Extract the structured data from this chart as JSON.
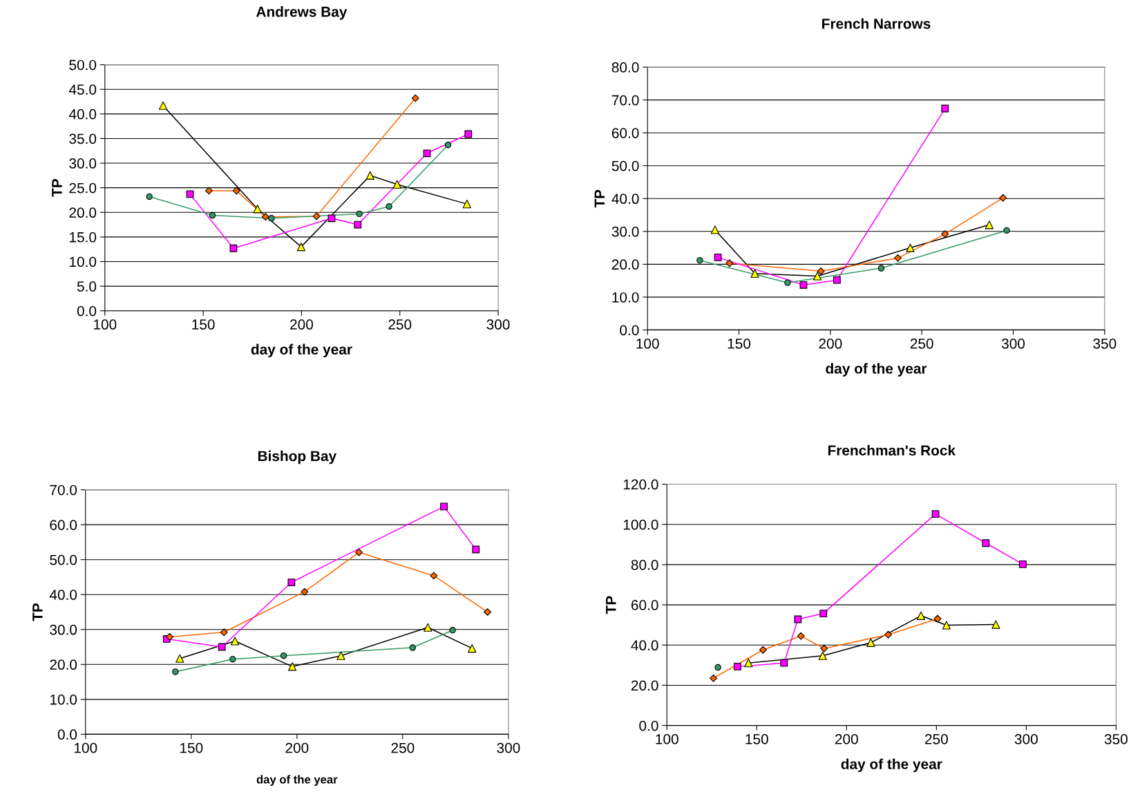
{
  "chart_data": [
    {
      "type": "line",
      "title": "Andrews Bay",
      "xlabel": "day of the year",
      "ylabel": "TP",
      "xlim": [
        100,
        300
      ],
      "xticks": [
        100,
        150,
        200,
        250,
        300
      ],
      "ylim": [
        0,
        50
      ],
      "yticks": [
        {
          "value": 0,
          "label": "0.0"
        },
        {
          "value": 5,
          "label": "5.0"
        },
        {
          "value": 10,
          "label": "10.0"
        },
        {
          "value": 15,
          "label": "15.0"
        },
        {
          "value": 20,
          "label": "20.0"
        },
        {
          "value": 25,
          "label": "25.0"
        },
        {
          "value": 30,
          "label": "30.0"
        },
        {
          "value": 35,
          "label": "35.0"
        },
        {
          "value": 40,
          "label": "40.0"
        },
        {
          "value": 45,
          "label": "45.0"
        },
        {
          "value": 50,
          "label": "50.0"
        }
      ],
      "grid": "y",
      "legend": false,
      "series": [
        {
          "color": "#000000",
          "colors": [
            "#ffff00",
            "#ffff00",
            "#ffff00",
            "#ffff00",
            "#ffff00",
            "#ffff00"
          ],
          "marker": "triangle",
          "x": [
            129.6,
            177.6,
            199.8,
            234.9,
            248.6,
            284.1
          ],
          "values": [
            41.7,
            20.7,
            13.0,
            27.5,
            25.7,
            21.7
          ]
        },
        {
          "color": "#ff6600",
          "marker": "diamond",
          "x": [
            152.9,
            166.9,
            181.7,
            207.6,
            257.9
          ],
          "values": [
            24.4,
            24.4,
            19.1,
            19.2,
            43.2
          ]
        },
        {
          "color": "#ff00ff",
          "marker": "square",
          "x": [
            143.3,
            165.4,
            215.3,
            228.6,
            263.8,
            284.8
          ],
          "values": [
            23.7,
            12.7,
            18.8,
            17.5,
            32.0,
            35.9
          ]
        },
        {
          "color": "#339966",
          "marker": "circle",
          "x": [
            122.6,
            154.7,
            184.7,
            229.4,
            244.5,
            274.5
          ],
          "values": [
            23.2,
            19.4,
            18.8,
            19.7,
            21.2,
            33.7
          ]
        }
      ]
    },
    {
      "type": "line",
      "title": "French Narrows",
      "xlabel": "day of the year",
      "ylabel": "TP",
      "xlim": [
        100,
        350
      ],
      "xticks": [
        100,
        150,
        200,
        250,
        300,
        350
      ],
      "ylim": [
        0,
        80
      ],
      "yticks": [
        {
          "value": 0,
          "label": "0.0"
        },
        {
          "value": 10,
          "label": "10.0"
        },
        {
          "value": 20,
          "label": "20.0"
        },
        {
          "value": 30,
          "label": "30.0"
        },
        {
          "value": 40,
          "label": "40.0"
        },
        {
          "value": 50,
          "label": "50.0"
        },
        {
          "value": 60,
          "label": "60.0"
        },
        {
          "value": 70,
          "label": "70.0"
        },
        {
          "value": 80,
          "label": "80.0"
        }
      ],
      "grid": "y",
      "legend": false,
      "series": [
        {
          "color": "#000000",
          "colors": [
            "#ffff00",
            "#ffff00",
            "#ffff00",
            "#ffff00",
            "#ffff00"
          ],
          "marker": "triangle",
          "x": [
            136.9,
            158.7,
            192.9,
            243.7,
            286.9
          ],
          "values": [
            30.5,
            17.2,
            16.4,
            25.0,
            32.0
          ]
        },
        {
          "color": "#ff6600",
          "marker": "diamond",
          "x": [
            144.8,
            194.8,
            236.9,
            262.7,
            294.4
          ],
          "values": [
            20.3,
            17.9,
            21.9,
            29.2,
            40.2
          ]
        },
        {
          "color": "#ff00ff",
          "marker": "square",
          "x": [
            138.5,
            185.3,
            203.6,
            262.7
          ],
          "values": [
            22.1,
            13.7,
            15.2,
            67.4
          ]
        },
        {
          "color": "#339966",
          "marker": "circle",
          "x": [
            128.6,
            176.6,
            227.8,
            296.4
          ],
          "values": [
            21.2,
            14.4,
            18.8,
            30.3
          ]
        }
      ]
    },
    {
      "type": "line",
      "title": "Bishop Bay",
      "xlabel": "day of the year",
      "ylabel": "TP",
      "xlim": [
        100,
        300
      ],
      "xticks": [
        100,
        150,
        200,
        250,
        300
      ],
      "ylim": [
        0,
        70
      ],
      "yticks": [
        {
          "value": 0,
          "label": "0.0"
        },
        {
          "value": 10,
          "label": "10.0"
        },
        {
          "value": 20,
          "label": "20.0"
        },
        {
          "value": 30,
          "label": "30.0"
        },
        {
          "value": 40,
          "label": "40.0"
        },
        {
          "value": 50,
          "label": "50.0"
        },
        {
          "value": 60,
          "label": "60.0"
        },
        {
          "value": 70,
          "label": "70.0"
        }
      ],
      "grid": "y",
      "legend": false,
      "series": [
        {
          "color": "#000000",
          "colors": [
            "#ffff00",
            "#ffff00",
            "#ffff00",
            "#ffff00",
            "#ffff00",
            "#ffff00"
          ],
          "marker": "triangle",
          "x": [
            144.6,
            170.7,
            197.8,
            220.8,
            261.9,
            282.8
          ],
          "values": [
            21.7,
            26.7,
            19.4,
            22.5,
            30.6,
            24.6
          ]
        },
        {
          "color": "#ff6600",
          "marker": "diamond",
          "x": [
            139.8,
            165.5,
            203.6,
            229.3,
            264.7,
            290.1
          ],
          "values": [
            27.9,
            29.2,
            40.8,
            52.1,
            45.4,
            35.0
          ]
        },
        {
          "color": "#ff00ff",
          "marker": "square",
          "x": [
            138.4,
            164.5,
            197.4,
            269.5,
            284.6
          ],
          "values": [
            27.3,
            25.0,
            43.5,
            65.2,
            52.9
          ]
        },
        {
          "color": "#339966",
          "marker": "circle",
          "x": [
            142.5,
            169.6,
            193.7,
            254.7,
            273.6
          ],
          "values": [
            17.9,
            21.5,
            22.5,
            24.8,
            29.8
          ]
        }
      ]
    },
    {
      "type": "line",
      "title": "Frenchman's Rock",
      "xlabel": "day of the year",
      "ylabel": "TP",
      "xlim": [
        100,
        350
      ],
      "xticks": [
        100,
        150,
        200,
        250,
        300,
        350
      ],
      "ylim": [
        0,
        120
      ],
      "yticks": [
        {
          "value": 0,
          "label": "0.0"
        },
        {
          "value": 20,
          "label": "20.0"
        },
        {
          "value": 40,
          "label": "40.0"
        },
        {
          "value": 60,
          "label": "60.0"
        },
        {
          "value": 80,
          "label": "80.0"
        },
        {
          "value": 100,
          "label": "100.0"
        },
        {
          "value": 120,
          "label": "120.0"
        }
      ],
      "grid": "y",
      "legend": false,
      "series": [
        {
          "color": "#000000",
          "colors": [
            "#ffff00",
            "#ffff00",
            "#ffff00",
            "#ffff00",
            "#ffff00",
            "#ffff00"
          ],
          "marker": "triangle",
          "x": [
            145.4,
            186.7,
            213.5,
            241.4,
            255.6,
            283.1
          ],
          "values": [
            31.1,
            34.7,
            41.2,
            54.6,
            49.9,
            50.2
          ]
        },
        {
          "color": "#ff6600",
          "marker": "diamond",
          "x": [
            125.9,
            153.5,
            174.6,
            187.5,
            223.2,
            250.7
          ],
          "values": [
            23.5,
            37.6,
            44.5,
            38.3,
            45.2,
            53.1
          ]
        },
        {
          "color": "#ff00ff",
          "marker": "square",
          "x": [
            139.3,
            165.2,
            172.9,
            187.1,
            249.5,
            277.5,
            298.1
          ],
          "values": [
            29.3,
            31.1,
            52.8,
            55.7,
            105.2,
            90.7,
            80.2
          ]
        },
        {
          "color": "#339966",
          "marker": "circle",
          "x": [
            128.4
          ],
          "values": [
            28.9
          ]
        }
      ]
    }
  ]
}
